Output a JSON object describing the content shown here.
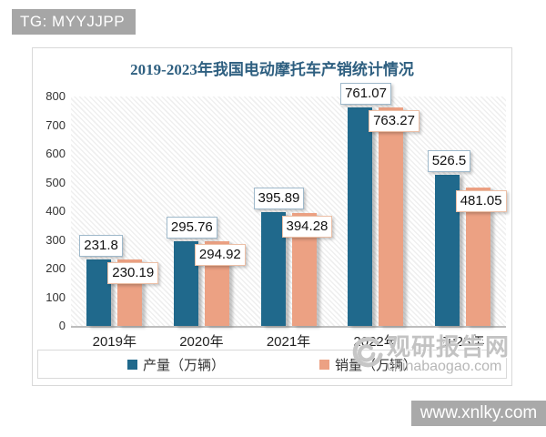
{
  "page": {
    "tag_badge": "TG: MYYJJPP",
    "footer_url": "www.xnlky.com"
  },
  "chart_data": {
    "type": "bar",
    "title": "2019-2023年我国电动摩托车产销统计情况",
    "categories": [
      "2019年",
      "2020年",
      "2021年",
      "2022年",
      "2023年"
    ],
    "series": [
      {
        "name": "产量（万辆）",
        "color": "#20698C",
        "values": [
          231.8,
          295.76,
          395.89,
          761.07,
          526.5
        ]
      },
      {
        "name": "销量（万辆）",
        "color": "#ECA183",
        "values": [
          230.19,
          294.92,
          394.28,
          763.27,
          481.05
        ]
      }
    ],
    "ylim": [
      0,
      800
    ],
    "ytick_step": 100,
    "grid": false,
    "legend_position": "bottom",
    "plot_background": "diagonal-hatch",
    "data_labels": true
  },
  "watermark": {
    "logo_icon": "swirl-logo",
    "site_name": "观研报告网",
    "site_url": "chinabaogao.com"
  },
  "colors": {
    "production": "#20698C",
    "sales": "#ECA183",
    "title": "#2E5F80",
    "badge_bg": "#A6A6A6",
    "footer_bg": "#A9A9A9",
    "card_border": "#D9D9D9",
    "watermark": "#C3C3C3"
  }
}
